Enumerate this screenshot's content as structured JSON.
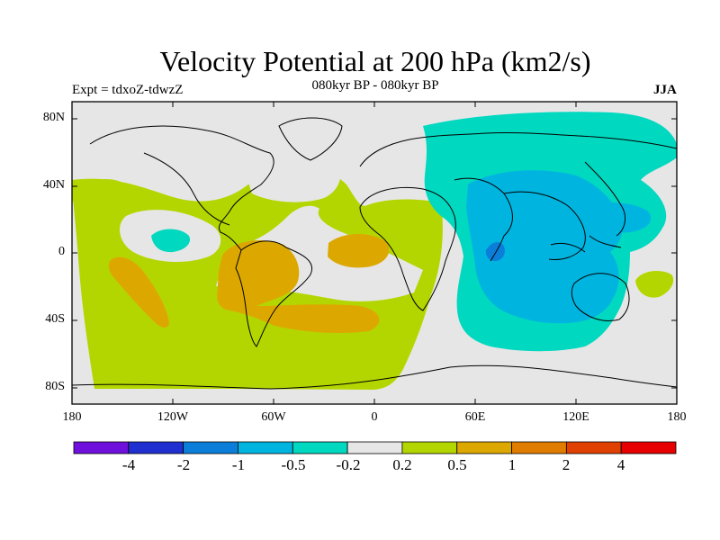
{
  "title": "Velocity Potential at 200 hPa (km2/s)",
  "subtitle_left": "Expt = tdxoZ-tdwzZ",
  "subtitle_center": "080kyr BP - 080kyr BP",
  "subtitle_right": "JJA",
  "y_axis_labels": [
    "80N",
    "40N",
    "0",
    "40S",
    "80S"
  ],
  "x_axis_labels": [
    "180",
    "120W",
    "60W",
    "0",
    "60E",
    "120E",
    "180"
  ],
  "colorbar": {
    "labels": [
      "-4",
      "-2",
      "-1",
      "-0.5",
      "-0.2",
      "0.2",
      "0.5",
      "1",
      "2",
      "4"
    ],
    "colors": [
      "#7010dd",
      "#2030d0",
      "#0a7ed8",
      "#00b4e0",
      "#00d8c0",
      "#e6e6e6",
      "#b4d600",
      "#dca800",
      "#e07d00",
      "#e04000",
      "#e60000"
    ]
  },
  "map_colors": {
    "background": "#e6e6e6",
    "positive_weak": "#b4d600",
    "positive_mid": "#dca800",
    "negative_weak": "#00d8c0",
    "negative_mid": "#00b4e0",
    "negative_strong": "#0a7ed8"
  }
}
